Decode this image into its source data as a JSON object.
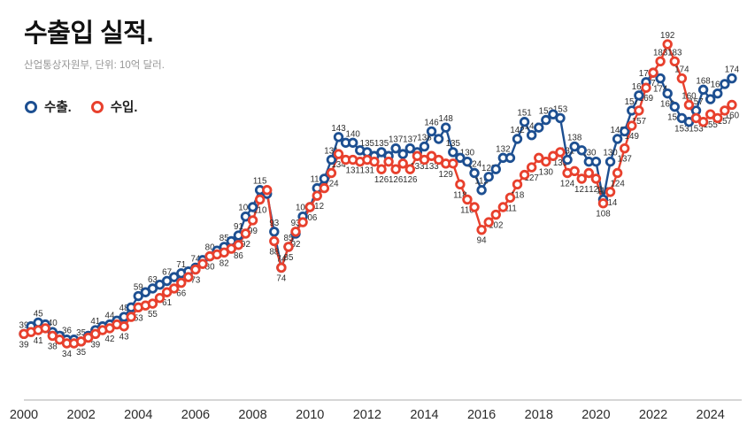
{
  "title": "수출입 실적.",
  "subtitle": "산업통상자원부, 단위: 10억 달러.",
  "legend": [
    {
      "label": "수출.",
      "color": "#1d4f91"
    },
    {
      "label": "수입.",
      "color": "#e8402d"
    }
  ],
  "chart_data": {
    "type": "line",
    "title": "수출입 실적.",
    "subtitle": "산업통상자원부, 단위: 10억 달러.",
    "unit": "10억 달러",
    "frequency": "quarterly",
    "x_start_year": 2000,
    "x_tick_years": [
      2000,
      2002,
      2004,
      2006,
      2008,
      2010,
      2012,
      2014,
      2016,
      2018,
      2020,
      2022,
      2024
    ],
    "ylim": [
      30,
      200
    ],
    "grid": false,
    "legend_position": "top-left",
    "point_style": "open-circle",
    "data_labels": true,
    "series": [
      {
        "name": "수출.",
        "color": "#1d4f91",
        "values": [
          39,
          43,
          45,
          44,
          40,
          38,
          36,
          36,
          35,
          38,
          41,
          43,
          44,
          46,
          48,
          53,
          59,
          61,
          63,
          65,
          67,
          69,
          71,
          72,
          74,
          78,
          80,
          83,
          85,
          88,
          91,
          101,
          106,
          115,
          113,
          93,
          74,
          85,
          92,
          101,
          106,
          116,
          121,
          131,
          143,
          140,
          140,
          136,
          135,
          133,
          135,
          133,
          137,
          134,
          137,
          135,
          138,
          146,
          142,
          148,
          135,
          132,
          130,
          124,
          115,
          122,
          126,
          132,
          132,
          142,
          151,
          144,
          148,
          152,
          155,
          153,
          131,
          138,
          136,
          130,
          130,
          110,
          130,
          142,
          146,
          157,
          165,
          172,
          177,
          174,
          166,
          159,
          153,
          151,
          157,
          168,
          163,
          166,
          171,
          174
        ]
      },
      {
        "name": "수입.",
        "color": "#e8402d",
        "values": [
          39,
          40,
          41,
          42,
          38,
          36,
          34,
          34,
          35,
          37,
          39,
          41,
          42,
          44,
          43,
          48,
          53,
          54,
          55,
          58,
          61,
          63,
          66,
          69,
          73,
          76,
          80,
          81,
          82,
          84,
          86,
          92,
          99,
          110,
          115,
          88,
          74,
          85,
          93,
          98,
          106,
          112,
          116,
          124,
          134,
          131,
          131,
          130,
          131,
          130,
          126,
          130,
          126,
          129,
          126,
          133,
          131,
          133,
          131,
          129,
          129,
          118,
          110,
          106,
          94,
          98,
          102,
          106,
          111,
          118,
          123,
          127,
          132,
          130,
          133,
          135,
          124,
          125,
          121,
          124,
          121,
          108,
          114,
          124,
          137,
          149,
          157,
          169,
          177,
          183,
          192,
          183,
          174,
          160,
          153,
          151,
          155,
          153,
          157,
          160
        ]
      }
    ]
  }
}
